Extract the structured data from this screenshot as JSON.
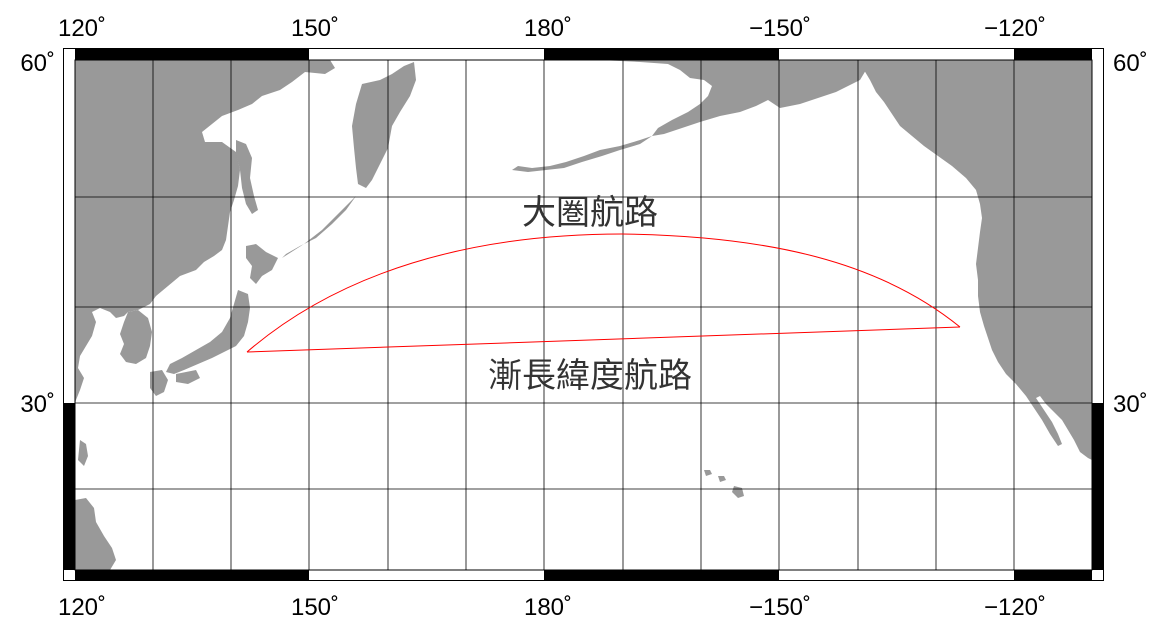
{
  "map": {
    "region": "North Pacific Ocean",
    "projection": "plate-carree",
    "lon_range": [
      118.5,
      -111.3
    ],
    "lat_range": [
      12.0,
      61.0
    ],
    "gridlines_lon": [
      130,
      140,
      150,
      160,
      170,
      180,
      -170,
      -160,
      -150,
      -140,
      -130,
      -120
    ],
    "gridlines_lat": [
      20,
      30,
      40,
      50,
      60
    ],
    "colors": {
      "land": "#999999",
      "ocean": "#ffffff",
      "route": "#ff0000",
      "grid": "#000000",
      "frame": "#000000"
    }
  },
  "axis_labels": {
    "top": [
      "120˚",
      "150˚",
      "180˚",
      "−150˚",
      "−120˚"
    ],
    "bottom": [
      "120˚",
      "150˚",
      "180˚",
      "−150˚",
      "−120˚"
    ],
    "left": [
      "60˚",
      "30˚"
    ],
    "right": [
      "60˚",
      "30˚"
    ]
  },
  "routes": [
    {
      "label": "大圏航路",
      "type": "great-circle",
      "from": "Tokyo Bay",
      "to": "San Francisco",
      "color": "#ff0000"
    },
    {
      "label": "漸長緯度航路",
      "type": "rhumb-line",
      "from": "Tokyo Bay",
      "to": "San Francisco",
      "color": "#ff0000"
    }
  ]
}
